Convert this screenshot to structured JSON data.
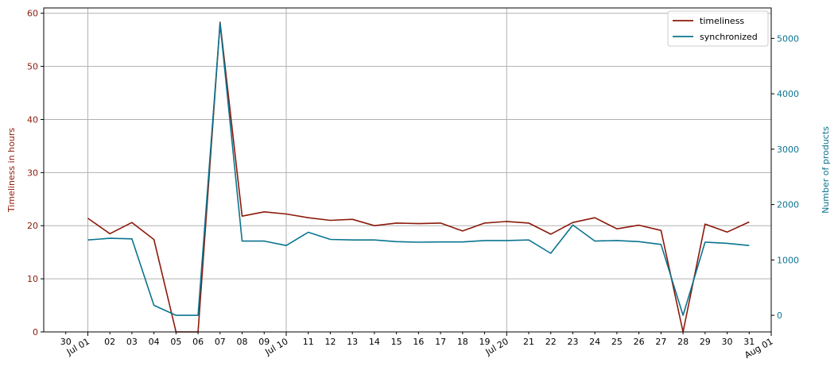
{
  "chart_data": {
    "type": "line",
    "title": "",
    "xlabel": "",
    "ylabel_left": "Timeliness in hours",
    "ylabel_right": "Number of products",
    "x": [
      "2023-07-01",
      "2023-07-02",
      "2023-07-03",
      "2023-07-04",
      "2023-07-05",
      "2023-07-06",
      "2023-07-07",
      "2023-07-08",
      "2023-07-09",
      "2023-07-10",
      "2023-07-11",
      "2023-07-12",
      "2023-07-13",
      "2023-07-14",
      "2023-07-15",
      "2023-07-16",
      "2023-07-17",
      "2023-07-18",
      "2023-07-19",
      "2023-07-20",
      "2023-07-21",
      "2023-07-22",
      "2023-07-23",
      "2023-07-24",
      "2023-07-25",
      "2023-07-26",
      "2023-07-27",
      "2023-07-28",
      "2023-07-29",
      "2023-07-30",
      "2023-07-31"
    ],
    "x_tick_labels": [
      {
        "date": "2023-06-30",
        "label": "30",
        "rotated": false
      },
      {
        "date": "2023-07-01",
        "label": "Jul 01",
        "rotated": true
      },
      {
        "date": "2023-07-02",
        "label": "02",
        "rotated": false
      },
      {
        "date": "2023-07-03",
        "label": "03",
        "rotated": false
      },
      {
        "date": "2023-07-04",
        "label": "04",
        "rotated": false
      },
      {
        "date": "2023-07-05",
        "label": "05",
        "rotated": false
      },
      {
        "date": "2023-07-06",
        "label": "06",
        "rotated": false
      },
      {
        "date": "2023-07-07",
        "label": "07",
        "rotated": false
      },
      {
        "date": "2023-07-08",
        "label": "08",
        "rotated": false
      },
      {
        "date": "2023-07-09",
        "label": "09",
        "rotated": false
      },
      {
        "date": "2023-07-10",
        "label": "Jul 10",
        "rotated": true
      },
      {
        "date": "2023-07-11",
        "label": "11",
        "rotated": false
      },
      {
        "date": "2023-07-12",
        "label": "12",
        "rotated": false
      },
      {
        "date": "2023-07-13",
        "label": "13",
        "rotated": false
      },
      {
        "date": "2023-07-14",
        "label": "14",
        "rotated": false
      },
      {
        "date": "2023-07-15",
        "label": "15",
        "rotated": false
      },
      {
        "date": "2023-07-16",
        "label": "16",
        "rotated": false
      },
      {
        "date": "2023-07-17",
        "label": "17",
        "rotated": false
      },
      {
        "date": "2023-07-18",
        "label": "18",
        "rotated": false
      },
      {
        "date": "2023-07-19",
        "label": "19",
        "rotated": false
      },
      {
        "date": "2023-07-20",
        "label": "Jul 20",
        "rotated": true
      },
      {
        "date": "2023-07-21",
        "label": "21",
        "rotated": false
      },
      {
        "date": "2023-07-22",
        "label": "22",
        "rotated": false
      },
      {
        "date": "2023-07-23",
        "label": "23",
        "rotated": false
      },
      {
        "date": "2023-07-24",
        "label": "24",
        "rotated": false
      },
      {
        "date": "2023-07-25",
        "label": "25",
        "rotated": false
      },
      {
        "date": "2023-07-26",
        "label": "26",
        "rotated": false
      },
      {
        "date": "2023-07-27",
        "label": "27",
        "rotated": false
      },
      {
        "date": "2023-07-28",
        "label": "28",
        "rotated": false
      },
      {
        "date": "2023-07-29",
        "label": "29",
        "rotated": false
      },
      {
        "date": "2023-07-30",
        "label": "30",
        "rotated": false
      },
      {
        "date": "2023-07-31",
        "label": "31",
        "rotated": false
      },
      {
        "date": "2023-08-01",
        "label": "Aug 01",
        "rotated": true
      }
    ],
    "x_gridlines": [
      "2023-07-01",
      "2023-07-10",
      "2023-07-20",
      "2023-08-01"
    ],
    "xlim": [
      "2023-06-29",
      "2023-08-01"
    ],
    "ylim_left": [
      0,
      61
    ],
    "ylim_right": [
      -300,
      5550
    ],
    "yticks_left": [
      0,
      10,
      20,
      30,
      40,
      50,
      60
    ],
    "yticks_right": [
      0,
      1000,
      2000,
      3000,
      4000,
      5000
    ],
    "grid": true,
    "legend_position": "top-right",
    "series": [
      {
        "name": "timeliness",
        "axis": "left",
        "color": "#8b1a0a",
        "values": [
          21.4,
          18.5,
          20.6,
          17.4,
          0,
          0,
          58.3,
          21.8,
          22.6,
          22.2,
          21.5,
          21.0,
          21.2,
          20.0,
          20.5,
          20.4,
          20.5,
          19.0,
          20.5,
          20.8,
          20.5,
          18.4,
          20.6,
          21.5,
          19.4,
          20.1,
          19.1,
          0,
          20.3,
          18.8,
          20.7
        ]
      },
      {
        "name": "synchronized",
        "axis": "right",
        "color": "#0a7490",
        "values": [
          1360,
          1390,
          1380,
          180,
          0,
          0,
          5270,
          1340,
          1340,
          1260,
          1500,
          1370,
          1360,
          1360,
          1330,
          1320,
          1325,
          1325,
          1350,
          1350,
          1360,
          1120,
          1630,
          1340,
          1350,
          1330,
          1280,
          0,
          1320,
          1300,
          1260
        ]
      }
    ],
    "colors": {
      "left_axis": "#8b1a0a",
      "right_axis": "#0a7490",
      "grid": "#b0b0b0",
      "axis_frame": "#000000"
    }
  }
}
